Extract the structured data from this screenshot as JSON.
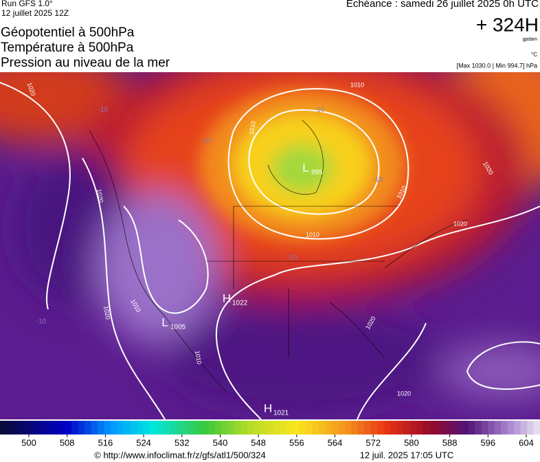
{
  "header": {
    "run": "Run GFS 1.0°",
    "run_date": "12 juillet 2025 12Z",
    "valid": "Echéance : samedi 26 juillet 2025 0h UTC",
    "lead": "+ 324H",
    "unit": "gpdam",
    "temp_unit": "°C",
    "pressure_range": "[Max 1030.0 | Min 994.7] hPa",
    "titles": [
      "Géopotentiel à 500hPa",
      "Température à 500hPa",
      "Pression au niveau de la mer"
    ]
  },
  "map": {
    "centers": [
      {
        "label": "L",
        "value": 995
      },
      {
        "label": "H",
        "value": 1022
      },
      {
        "label": "L",
        "value": 1005
      },
      {
        "label": "H",
        "value": 1021
      }
    ],
    "isobar_labels": [
      "1020",
      "1010",
      "1010",
      "1010",
      "1020",
      "1020",
      "1010",
      "1020",
      "1020",
      "1010",
      "1010",
      "1020",
      "1020"
    ],
    "temp_labels": [
      "-10",
      "-10",
      "-10",
      "-10",
      "-10",
      "-10"
    ]
  },
  "colorbar": {
    "ticks": [
      500,
      508,
      516,
      524,
      532,
      540,
      548,
      556,
      564,
      572,
      580,
      588,
      596,
      604
    ]
  },
  "footer": {
    "url": "© http://www.infoclimat.fr/z/gfs/atl1/500/324",
    "generated": "12 juil. 2025 17:05 UTC"
  }
}
